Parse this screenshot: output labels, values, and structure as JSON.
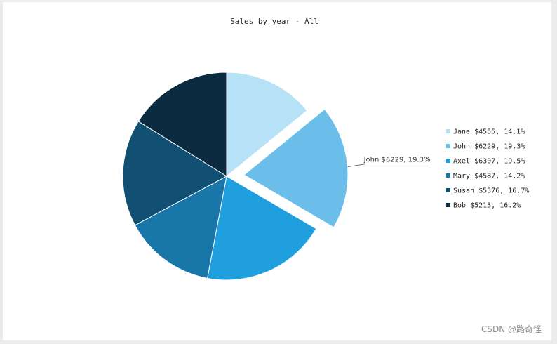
{
  "chart_data": {
    "type": "pie",
    "title": "Sales by year - All",
    "slices": [
      {
        "name": "Jane",
        "value": 4555,
        "percent": "14.1%",
        "legend": "Jane $4555, 14.1%",
        "color": "#b7e1f6"
      },
      {
        "name": "John",
        "value": 6229,
        "percent": "19.3%",
        "legend": "John $6229, 19.3%",
        "color": "#6bbdea",
        "exploded": true,
        "callout": "John $6229, 19.3%"
      },
      {
        "name": "Axel",
        "value": 6307,
        "percent": "19.5%",
        "legend": "Axel $6307, 19.5%",
        "color": "#1f9fde"
      },
      {
        "name": "Mary",
        "value": 4587,
        "percent": "14.2%",
        "legend": "Mary $4587, 14.2%",
        "color": "#1976a8"
      },
      {
        "name": "Susan",
        "value": 5376,
        "percent": "16.7%",
        "legend": "Susan $5376, 16.7%",
        "color": "#115072"
      },
      {
        "name": "Bob",
        "value": 5213,
        "percent": "16.2%",
        "legend": "Bob $5213, 16.2%",
        "color": "#0a2b40"
      }
    ],
    "legend_position": "right"
  },
  "watermark": "CSDN @路奇怪"
}
